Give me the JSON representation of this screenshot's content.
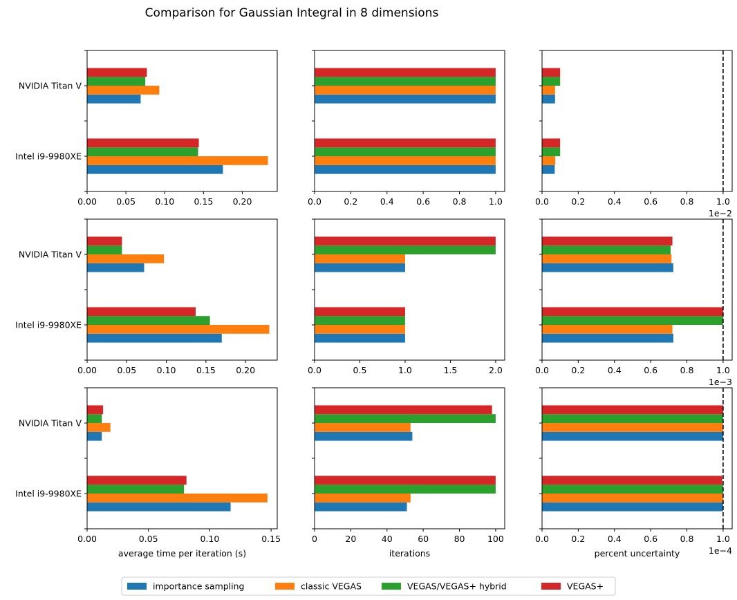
{
  "title": "Comparison for Gaussian Integral in 8 dimensions",
  "colors": {
    "importance sampling": "#1f77b4",
    "classic VEGAS": "#ff7f0e",
    "VEGAS/VEGAS+ hybrid": "#2ca02c",
    "VEGAS+": "#d62728"
  },
  "legend": {
    "placement": "bottom-center",
    "entries": [
      "importance sampling",
      "classic VEGAS",
      "VEGAS/VEGAS+ hybrid",
      "VEGAS+"
    ]
  },
  "chart_data": [
    {
      "type": "bar",
      "orientation": "horizontal",
      "categories": [
        "Intel i9-9980XE",
        "NVIDIA Titan V"
      ],
      "series": [
        {
          "name": "importance sampling",
          "values": [
            0.175,
            0.069
          ]
        },
        {
          "name": "classic VEGAS",
          "values": [
            0.233,
            0.093
          ]
        },
        {
          "name": "VEGAS/VEGAS+ hybrid",
          "values": [
            0.143,
            0.075
          ]
        },
        {
          "name": "VEGAS+",
          "values": [
            0.144,
            0.077
          ]
        }
      ],
      "xlim": [
        0,
        0.245
      ],
      "xticks": [
        0,
        0.05,
        0.1,
        0.15,
        0.2
      ],
      "xtick_labels": [
        "0.00",
        "0.05",
        "0.10",
        "0.15",
        "0.20"
      ],
      "xlabel": "",
      "offset_text": ""
    },
    {
      "type": "bar",
      "orientation": "horizontal",
      "categories": [
        "Intel i9-9980XE",
        "NVIDIA Titan V"
      ],
      "series": [
        {
          "name": "importance sampling",
          "values": [
            1,
            1
          ]
        },
        {
          "name": "classic VEGAS",
          "values": [
            1,
            1
          ]
        },
        {
          "name": "VEGAS/VEGAS+ hybrid",
          "values": [
            1,
            1
          ]
        },
        {
          "name": "VEGAS+",
          "values": [
            1,
            1
          ]
        }
      ],
      "xlim": [
        0,
        1.05
      ],
      "xticks": [
        0,
        0.2,
        0.4,
        0.6,
        0.8,
        1.0
      ],
      "xtick_labels": [
        "0.0",
        "0.2",
        "0.4",
        "0.6",
        "0.8",
        "1.0"
      ],
      "xlabel": "",
      "offset_text": ""
    },
    {
      "type": "bar",
      "orientation": "horizontal",
      "categories": [
        "Intel i9-9980XE",
        "NVIDIA Titan V"
      ],
      "series": [
        {
          "name": "importance sampling",
          "values": [
            0.07,
            0.072
          ]
        },
        {
          "name": "classic VEGAS",
          "values": [
            0.073,
            0.072
          ]
        },
        {
          "name": "VEGAS/VEGAS+ hybrid",
          "values": [
            0.1,
            0.1
          ]
        },
        {
          "name": "VEGAS+",
          "values": [
            0.1,
            0.1
          ]
        }
      ],
      "xlim": [
        0,
        1.05
      ],
      "xticks": [
        0,
        0.2,
        0.4,
        0.6,
        0.8,
        1.0
      ],
      "xtick_labels": [
        "0.0",
        "0.2",
        "0.4",
        "0.6",
        "0.8",
        "1.0"
      ],
      "xlabel": "",
      "offset_text": "1e−2",
      "reference_line": 1.0
    },
    {
      "type": "bar",
      "orientation": "horizontal",
      "categories": [
        "Intel i9-9980XE",
        "NVIDIA Titan V"
      ],
      "series": [
        {
          "name": "importance sampling",
          "values": [
            0.17,
            0.072
          ]
        },
        {
          "name": "classic VEGAS",
          "values": [
            0.23,
            0.097
          ]
        },
        {
          "name": "VEGAS/VEGAS+ hybrid",
          "values": [
            0.155,
            0.044
          ]
        },
        {
          "name": "VEGAS+",
          "values": [
            0.137,
            0.044
          ]
        }
      ],
      "xlim": [
        0,
        0.24
      ],
      "xticks": [
        0,
        0.05,
        0.1,
        0.15,
        0.2
      ],
      "xtick_labels": [
        "0.00",
        "0.05",
        "0.10",
        "0.15",
        "0.20"
      ],
      "xlabel": "",
      "offset_text": ""
    },
    {
      "type": "bar",
      "orientation": "horizontal",
      "categories": [
        "Intel i9-9980XE",
        "NVIDIA Titan V"
      ],
      "series": [
        {
          "name": "importance sampling",
          "values": [
            1,
            1
          ]
        },
        {
          "name": "classic VEGAS",
          "values": [
            1,
            1
          ]
        },
        {
          "name": "VEGAS/VEGAS+ hybrid",
          "values": [
            1,
            2
          ]
        },
        {
          "name": "VEGAS+",
          "values": [
            1,
            2
          ]
        }
      ],
      "xlim": [
        0,
        2.1
      ],
      "xticks": [
        0,
        0.5,
        1.0,
        1.5,
        2.0
      ],
      "xtick_labels": [
        "0.0",
        "0.5",
        "1.0",
        "1.5",
        "2.0"
      ],
      "xlabel": "",
      "offset_text": ""
    },
    {
      "type": "bar",
      "orientation": "horizontal",
      "categories": [
        "Intel i9-9980XE",
        "NVIDIA Titan V"
      ],
      "series": [
        {
          "name": "importance sampling",
          "values": [
            0.725,
            0.725
          ]
        },
        {
          "name": "classic VEGAS",
          "values": [
            0.72,
            0.715
          ]
        },
        {
          "name": "VEGAS/VEGAS+ hybrid",
          "values": [
            1.0,
            0.71
          ]
        },
        {
          "name": "VEGAS+",
          "values": [
            1.0,
            0.72
          ]
        }
      ],
      "xlim": [
        0,
        1.05
      ],
      "xticks": [
        0,
        0.2,
        0.4,
        0.6,
        0.8,
        1.0
      ],
      "xtick_labels": [
        "0.0",
        "0.2",
        "0.4",
        "0.6",
        "0.8",
        "1.0"
      ],
      "xlabel": "",
      "offset_text": "1e−3",
      "reference_line": 1.0
    },
    {
      "type": "bar",
      "orientation": "horizontal",
      "categories": [
        "Intel i9-9980XE",
        "NVIDIA Titan V"
      ],
      "series": [
        {
          "name": "importance sampling",
          "values": [
            0.117,
            0.012
          ]
        },
        {
          "name": "classic VEGAS",
          "values": [
            0.147,
            0.019
          ]
        },
        {
          "name": "VEGAS/VEGAS+ hybrid",
          "values": [
            0.079,
            0.012
          ]
        },
        {
          "name": "VEGAS+",
          "values": [
            0.081,
            0.013
          ]
        }
      ],
      "xlim": [
        0,
        0.155
      ],
      "xticks": [
        0,
        0.05,
        0.1,
        0.15
      ],
      "xtick_labels": [
        "0.00",
        "0.05",
        "0.10",
        "0.15"
      ],
      "xlabel": "average time per iteration (s)",
      "offset_text": ""
    },
    {
      "type": "bar",
      "orientation": "horizontal",
      "categories": [
        "Intel i9-9980XE",
        "NVIDIA Titan V"
      ],
      "series": [
        {
          "name": "importance sampling",
          "values": [
            51,
            54
          ]
        },
        {
          "name": "classic VEGAS",
          "values": [
            53,
            53
          ]
        },
        {
          "name": "VEGAS/VEGAS+ hybrid",
          "values": [
            100,
            100
          ]
        },
        {
          "name": "VEGAS+",
          "values": [
            100,
            98
          ]
        }
      ],
      "xlim": [
        0,
        105
      ],
      "xticks": [
        0,
        20,
        40,
        60,
        80,
        100
      ],
      "xtick_labels": [
        "0",
        "20",
        "40",
        "60",
        "80",
        "100"
      ],
      "xlabel": "iterations",
      "offset_text": ""
    },
    {
      "type": "bar",
      "orientation": "horizontal",
      "categories": [
        "Intel i9-9980XE",
        "NVIDIA Titan V"
      ],
      "series": [
        {
          "name": "importance sampling",
          "values": [
            1.0,
            1.0
          ]
        },
        {
          "name": "classic VEGAS",
          "values": [
            1.0,
            1.0
          ]
        },
        {
          "name": "VEGAS/VEGAS+ hybrid",
          "values": [
            1.0,
            1.0
          ]
        },
        {
          "name": "VEGAS+",
          "values": [
            0.995,
            1.0
          ]
        }
      ],
      "xlim": [
        0,
        1.05
      ],
      "xticks": [
        0,
        0.2,
        0.4,
        0.6,
        0.8,
        1.0
      ],
      "xtick_labels": [
        "0.0",
        "0.2",
        "0.4",
        "0.6",
        "0.8",
        "1.0"
      ],
      "xlabel": "percent uncertainty",
      "offset_text": "1e−4",
      "reference_line": 1.0
    }
  ]
}
